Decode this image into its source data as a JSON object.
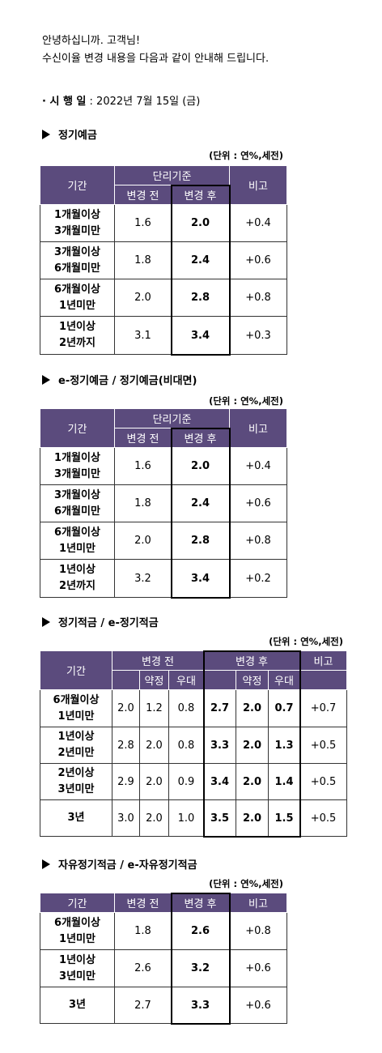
{
  "intro": {
    "greeting": "안녕하십니까. 고객님!",
    "message": "수신이율 변경 내용을 다음과 같이 안내해 드립니다."
  },
  "effective": {
    "label": "· 시 행 일",
    "value": " : 2022년 7월 15일 (금)"
  },
  "tables": [
    {
      "title": "정기예금",
      "unit": "(단위 : 연%,세전)",
      "header": {
        "period": "기간",
        "group": "단리기준",
        "before": "변경 전",
        "after": "변경 후",
        "note": "비고"
      },
      "rows": [
        {
          "period": [
            "1개월이상",
            "3개월미만"
          ],
          "before": "1.6",
          "after": "2.0",
          "note": "+0.4"
        },
        {
          "period": [
            "3개월이상",
            "6개월미만"
          ],
          "before": "1.8",
          "after": "2.4",
          "note": "+0.6"
        },
        {
          "period": [
            "6개월이상",
            "1년미만"
          ],
          "before": "2.0",
          "after": "2.8",
          "note": "+0.8"
        },
        {
          "period": [
            "1년이상",
            "2년까지"
          ],
          "before": "3.1",
          "after": "3.4",
          "note": "+0.3"
        }
      ]
    },
    {
      "title": "e-정기예금 / 정기예금(비대면)",
      "unit": "(단위 : 연%,세전)",
      "header": {
        "period": "기간",
        "group": "단리기준",
        "before": "변경 전",
        "after": "변경 후",
        "note": "비고"
      },
      "rows": [
        {
          "period": [
            "1개월이상",
            "3개월미만"
          ],
          "before": "1.6",
          "after": "2.0",
          "note": "+0.4"
        },
        {
          "period": [
            "3개월이상",
            "6개월미만"
          ],
          "before": "1.8",
          "after": "2.4",
          "note": "+0.6"
        },
        {
          "period": [
            "6개월이상",
            "1년미만"
          ],
          "before": "2.0",
          "after": "2.8",
          "note": "+0.8"
        },
        {
          "period": [
            "1년이상",
            "2년까지"
          ],
          "before": "3.2",
          "after": "3.4",
          "note": "+0.2"
        }
      ]
    },
    {
      "title": "정기적금 / e-정기적금",
      "unit": "(단위 : 연%,세전)",
      "header": {
        "period": "기간",
        "before": "변경 전",
        "after": "변경 후",
        "note": "비고",
        "before_sub": [
          "약정",
          "우대"
        ],
        "after_sub": [
          "약정",
          "우대"
        ]
      },
      "rows": [
        {
          "period": [
            "6개월이상",
            "1년미만"
          ],
          "before": [
            "2.0",
            "1.2",
            "0.8"
          ],
          "after": [
            "2.7",
            "2.0",
            "0.7"
          ],
          "note": "+0.7"
        },
        {
          "period": [
            "1년이상",
            "2년미만"
          ],
          "before": [
            "2.8",
            "2.0",
            "0.8"
          ],
          "after": [
            "3.3",
            "2.0",
            "1.3"
          ],
          "note": "+0.5"
        },
        {
          "period": [
            "2년이상",
            "3년미만"
          ],
          "before": [
            "2.9",
            "2.0",
            "0.9"
          ],
          "after": [
            "3.4",
            "2.0",
            "1.4"
          ],
          "note": "+0.5"
        },
        {
          "period": [
            "3년"
          ],
          "before": [
            "3.0",
            "2.0",
            "1.0"
          ],
          "after": [
            "3.5",
            "2.0",
            "1.5"
          ],
          "note": "+0.5"
        }
      ]
    },
    {
      "title": "자유정기적금 / e-자유정기적금",
      "unit": "(단위 : 연%,세전)",
      "header": {
        "period": "기간",
        "before": "변경 전",
        "after": "변경 후",
        "note": "비고"
      },
      "rows": [
        {
          "period": [
            "6개월이상",
            "1년미만"
          ],
          "before": "1.8",
          "after": "2.6",
          "note": "+0.8"
        },
        {
          "period": [
            "1년이상",
            "3년미만"
          ],
          "before": "2.6",
          "after": "3.2",
          "note": "+0.6"
        },
        {
          "period": [
            "3년"
          ],
          "before": "2.7",
          "after": "3.3",
          "note": "+0.6"
        }
      ]
    }
  ]
}
